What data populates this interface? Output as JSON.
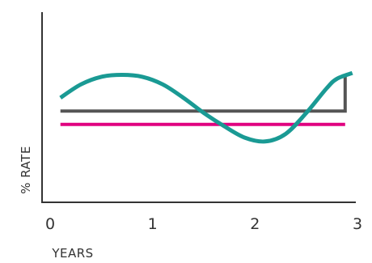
{
  "chart_data": {
    "type": "line",
    "xlabel": "YEARS",
    "ylabel": "% RATE",
    "xlim": [
      0,
      3
    ],
    "ylim": [
      0,
      100
    ],
    "x_ticks": [
      "0",
      "1",
      "2",
      "3"
    ],
    "grid": false,
    "series": [
      {
        "color": "#e0007f",
        "style": "flat",
        "x": [
          0.1,
          2.88
        ],
        "y": [
          41,
          41
        ]
      },
      {
        "color": "#555555",
        "style": "step",
        "x": [
          0.1,
          1.5,
          2.88,
          2.88
        ],
        "y": [
          48,
          48,
          48,
          66
        ]
      },
      {
        "color": "#1a9a94",
        "style": "smooth",
        "x": [
          0.1,
          0.3,
          0.5,
          0.7,
          0.9,
          1.1,
          1.3,
          1.5,
          1.7,
          1.9,
          2.1,
          2.3,
          2.5,
          2.7,
          2.8,
          2.95
        ],
        "y": [
          55,
          62,
          66,
          67,
          66,
          62,
          55,
          47,
          40,
          34,
          32,
          36,
          47,
          60,
          65,
          68
        ]
      }
    ]
  }
}
